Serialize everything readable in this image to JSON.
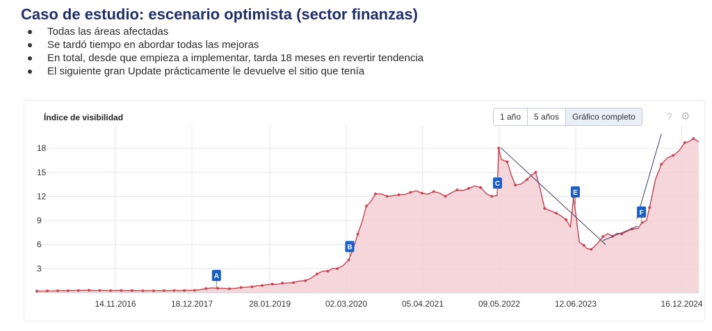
{
  "slide": {
    "title": "Caso de estudio: escenario optimista (sector finanzas)",
    "bullets": [
      "Todas las áreas afectadas",
      "Se tardó tiempo en abordar todas las mejoras",
      "En total, desde que empieza a implementar, tarda 18 meses en revertir tendencia",
      "El siguiente gran Update prácticamente le devuelve el sitio que tenía"
    ]
  },
  "panel": {
    "chart_title": "Índice de visibilidad",
    "range_buttons": [
      "1 año",
      "5 años",
      "Gráfico completo"
    ],
    "active_range": "Gráfico completo",
    "help_icon": "question-mark-icon",
    "settings_icon": "gear-icon"
  },
  "colors": {
    "title": "#1f2f6b",
    "line": "#c9404f",
    "fill": "#f3cfd4",
    "marker": "#1a5fc9",
    "grid": "#e6e6e6"
  },
  "chart_data": {
    "type": "area",
    "title": "Índice de visibilidad",
    "xlabel": "",
    "ylabel": "",
    "ylim": [
      0,
      20
    ],
    "yticks": [
      3,
      6,
      9,
      12,
      15,
      18
    ],
    "xlim": [
      "2015-10-01",
      "2025-03-15"
    ],
    "xticks": [
      "14.11.2016",
      "18.12.2017",
      "28.01.2019",
      "02.03.2020",
      "05.04.2021",
      "09.05.2022",
      "12.06.2023",
      "16.12.2024"
    ],
    "grid": true,
    "series": [
      {
        "x": [
          "2015-10-01",
          "2016-06-01",
          "2017-06-01",
          "2018-01-01",
          "2018-04-01",
          "2018-07-01",
          "2018-10-01",
          "2019-01-15",
          "2019-05-01",
          "2019-08-01",
          "2019-11-01",
          "2020-01-15",
          "2020-02-15",
          "2020-03-15",
          "2020-05-01",
          "2020-06-15",
          "2020-08-01",
          "2020-10-01",
          "2020-12-01",
          "2021-02-01",
          "2021-04-01",
          "2021-06-01",
          "2021-08-01",
          "2021-10-01",
          "2021-12-01",
          "2022-02-01",
          "2022-04-01",
          "2022-04-28",
          "2022-05-06",
          "2022-05-20",
          "2022-06-20",
          "2022-08-01",
          "2022-10-01",
          "2022-11-15",
          "2023-01-01",
          "2023-02-01",
          "2023-04-01",
          "2023-05-15",
          "2023-06-01",
          "2023-07-01",
          "2023-07-25",
          "2023-08-10",
          "2023-09-01",
          "2023-11-01",
          "2024-01-15",
          "2024-03-01",
          "2024-05-01",
          "2024-06-15",
          "2024-07-01",
          "2024-08-01",
          "2024-09-01",
          "2024-11-01",
          "2025-01-01",
          "2025-02-15",
          "2025-03-15"
        ],
        "y": [
          0.2,
          0.3,
          0.25,
          0.3,
          0.6,
          0.5,
          0.7,
          1.0,
          1.2,
          1.5,
          2.7,
          3.0,
          3.4,
          4.1,
          7.3,
          10.8,
          12.3,
          12.0,
          12.2,
          12.5,
          12.4,
          12.6,
          12.0,
          12.8,
          13.0,
          13.1,
          12.0,
          12.1,
          18.0,
          16.6,
          16.3,
          13.4,
          14.1,
          15.0,
          10.5,
          10.2,
          9.5,
          8.2,
          11.9,
          6.3,
          5.9,
          5.5,
          5.4,
          7.0,
          7.4,
          7.6,
          8.0,
          9.0,
          10.6,
          14.1,
          16.0,
          17.1,
          18.7,
          19.2,
          18.8
        ]
      }
    ],
    "markers": [
      {
        "label": "A",
        "x": "2018-04-25",
        "y": 0.6
      },
      {
        "label": "B",
        "x": "2020-03-20",
        "y": 4.2
      },
      {
        "label": "C",
        "x": "2022-04-30",
        "y": 12.1
      },
      {
        "label": "E",
        "x": "2023-06-10",
        "y": 11.0
      },
      {
        "label": "F",
        "x": "2024-05-20",
        "y": 8.5
      }
    ],
    "annotations": {
      "trend_lines": [
        {
          "from": {
            "x": "2022-05-15",
            "y": 18.1
          },
          "to": {
            "x": "2023-11-15",
            "y": 6.0
          }
        },
        {
          "from": {
            "x": "2023-11-01",
            "y": 6.5
          },
          "to": {
            "x": "2024-05-01",
            "y": 8.3
          }
        },
        {
          "from": {
            "x": "2024-04-25",
            "y": 9.2
          },
          "to": {
            "x": "2024-09-01",
            "y": 19.8
          }
        }
      ]
    }
  }
}
